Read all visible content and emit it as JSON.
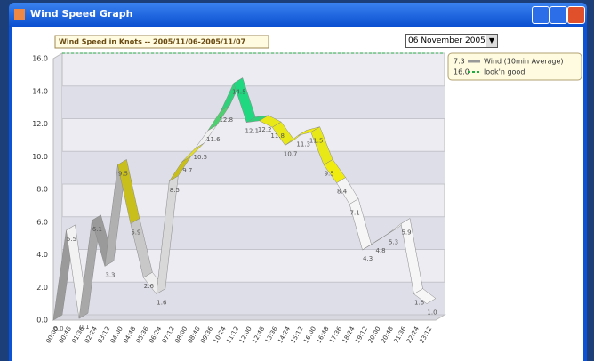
{
  "window": {
    "title": "Wind Speed Graph",
    "date_select": "06 November 2005"
  },
  "chart_data": {
    "type": "ribbon",
    "title": "Wind Speed in Knots -- 2005/11/06-2005/11/07",
    "categories": [
      "00:00",
      "00:48",
      "01:36",
      "02:24",
      "03:12",
      "04:00",
      "04:48",
      "05:36",
      "06:24",
      "07:12",
      "08:00",
      "08:48",
      "09:36",
      "10:24",
      "11:12",
      "12:00",
      "12:48",
      "13:36",
      "14:24",
      "15:12",
      "16:00",
      "16:48",
      "17:36",
      "18:24",
      "19:12",
      "20:00",
      "20:48",
      "21:36",
      "22:24",
      "23:12"
    ],
    "series": [
      {
        "name": "Wind (10min Average)",
        "legend_value": 7.3,
        "values": [
          0.0,
          5.5,
          0.1,
          6.1,
          3.3,
          9.5,
          5.9,
          2.6,
          1.6,
          8.5,
          9.7,
          10.5,
          11.6,
          12.8,
          14.5,
          12.1,
          12.2,
          11.8,
          10.7,
          11.3,
          11.5,
          9.5,
          8.4,
          7.1,
          4.3,
          4.8,
          5.3,
          5.9,
          1.6,
          1.0
        ],
        "value_labels": [
          "0.0",
          "5.5",
          "0.1",
          "6.1",
          "3.3",
          "9.5",
          "5.9",
          "2.6",
          "1.6",
          "8.5",
          "9.7",
          "10.5",
          "11.6",
          "12.8",
          "14.5",
          "12.1",
          "12.2",
          "11.8",
          "10.7",
          "11.3",
          "11.5",
          "9.5",
          "8.4",
          "7.1",
          "4.3",
          "4.8",
          "5.3",
          "5.9",
          "1.6",
          "1.0"
        ],
        "colors": [
          "#9a9a9a",
          "#f2f2f2",
          "#a8a8a8",
          "#9a9a9a",
          "#b0b0b0",
          "#c9bf1c",
          "#c8c8c8",
          "#eeeeee",
          "#d8d8d8",
          "#c9bf1c",
          "#e0dc30",
          "#f0f0f0",
          "#4fd070",
          "#2fd27a",
          "#20d880",
          "#2fd27a",
          "#e8e818",
          "#e8e818",
          "#f0ec10",
          "#f0ec10",
          "#e8e818",
          "#f0ec10",
          "#f4f4f4",
          "#f6f6f6",
          "#f6f6f6",
          "#f6f6f6",
          "#f6f6f6",
          "#f6f6f6",
          "#f6f6f6",
          "#f6f6f6"
        ]
      },
      {
        "name": "look'n good",
        "legend_value": {
          "value": 16,
          "label": "16.0"
        },
        "color": "#22aa44"
      }
    ],
    "ylim": [
      0,
      16
    ],
    "yticks": [
      {
        "value": 0,
        "label": "0.0"
      },
      {
        "value": 2,
        "label": "2.0"
      },
      {
        "value": 4,
        "label": "4.0"
      },
      {
        "value": 6,
        "label": "6.0"
      },
      {
        "value": 8,
        "label": "8.0"
      },
      {
        "value": 10,
        "label": "10.0"
      },
      {
        "value": 12,
        "label": "12.0"
      },
      {
        "value": 14,
        "label": "14.0"
      },
      {
        "value": 16,
        "label": "16.0"
      }
    ],
    "grid": true
  }
}
